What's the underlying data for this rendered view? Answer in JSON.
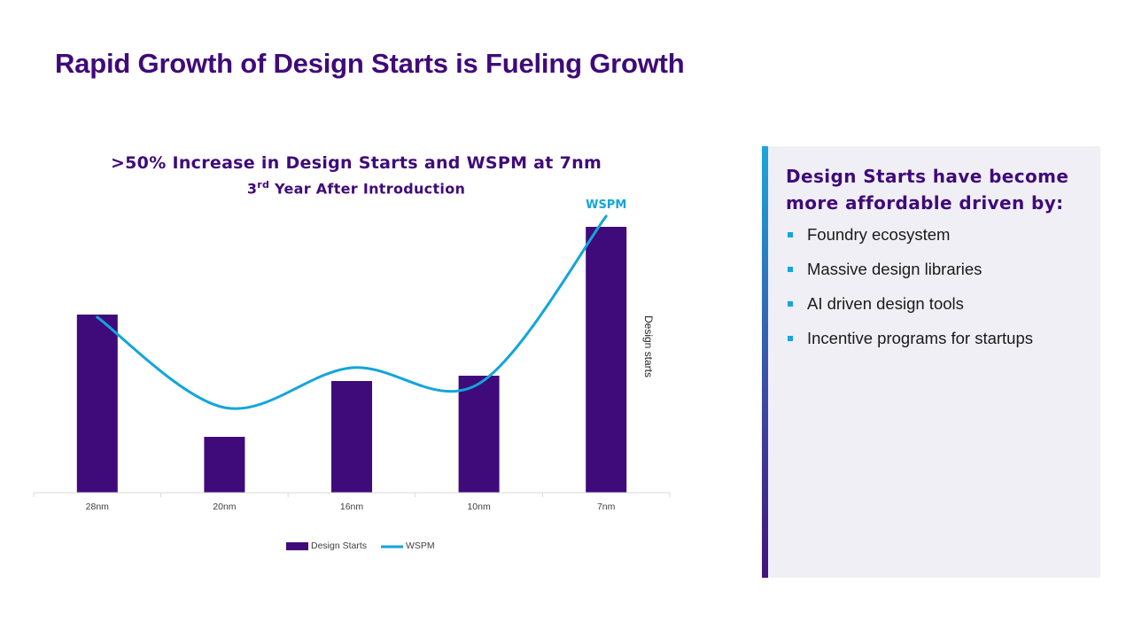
{
  "slide": {
    "title": "Rapid Growth of Design Starts is Fueling Growth"
  },
  "chart_data": {
    "type": "bar",
    "title": ">50% Increase in Design Starts and WSPM at 7nm",
    "subtitle_prefix": "3",
    "subtitle_sup": "rd",
    "subtitle_suffix": " Year  After Introduction",
    "categories": [
      "28nm",
      "20nm",
      "16nm",
      "10nm",
      "7nm"
    ],
    "series": [
      {
        "name": "Design Starts",
        "type": "bar",
        "color": "#3f0a7a",
        "values": [
          67,
          21,
          42,
          44,
          100
        ]
      },
      {
        "name": "WSPM",
        "type": "line",
        "color": "#12a5dc",
        "values": [
          66,
          32,
          47,
          41,
          104
        ]
      }
    ],
    "line_label": "WSPM",
    "y2label": "Design starts",
    "ylim": [
      0,
      110
    ],
    "legend": [
      "Design Starts",
      "WSPM"
    ],
    "legend_position": "bottom"
  },
  "panel": {
    "heading": "Design Starts have become more affordable driven by:",
    "items": [
      "Foundry ecosystem",
      "Massive design libraries",
      "AI driven design tools",
      "Incentive programs for startups"
    ],
    "accent_color": "#16a6dc"
  }
}
